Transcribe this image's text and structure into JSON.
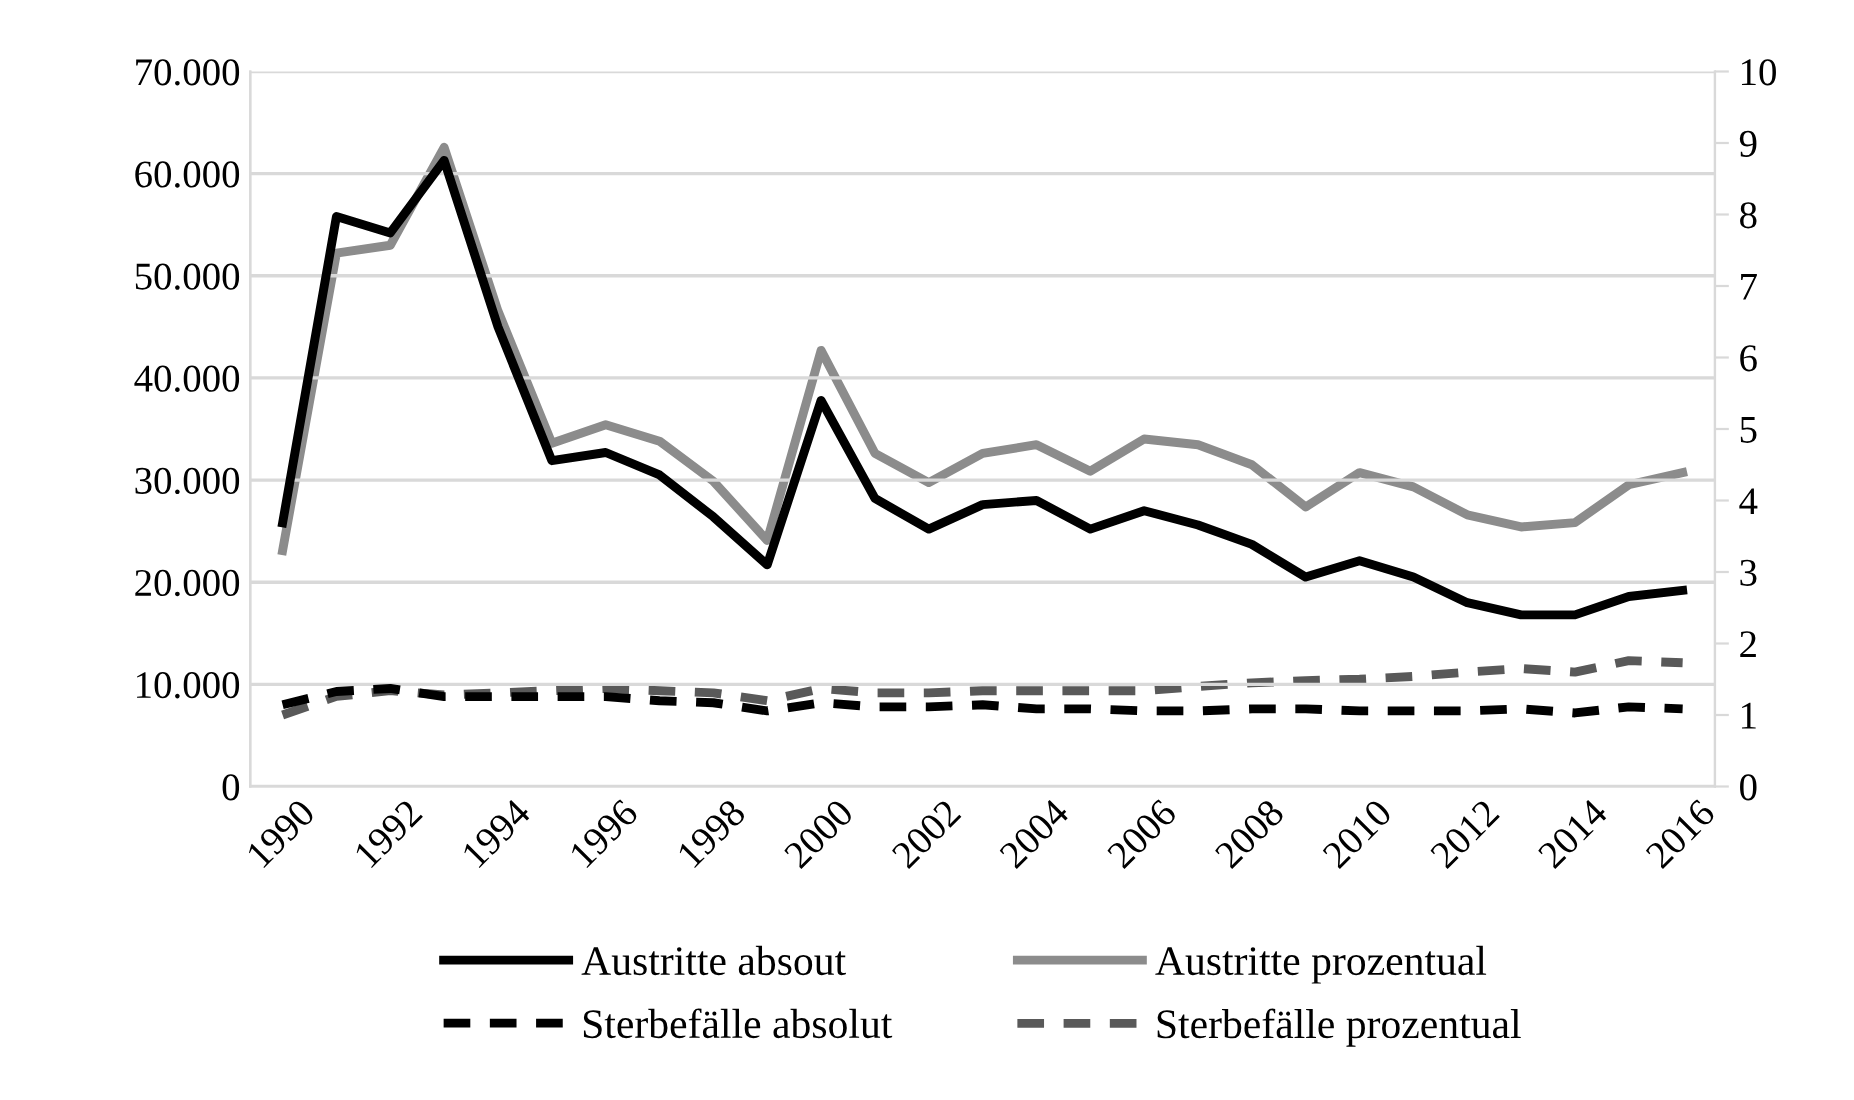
{
  "chart_data": {
    "type": "line",
    "x": [
      1990,
      1991,
      1992,
      1993,
      1994,
      1995,
      1996,
      1997,
      1998,
      1999,
      2000,
      2001,
      2002,
      2003,
      2004,
      2005,
      2006,
      2007,
      2008,
      2009,
      2010,
      2011,
      2012,
      2013,
      2014,
      2015,
      2016
    ],
    "series": [
      {
        "name": "Austritte absout",
        "color": "#000000",
        "line_style": "solid",
        "values": [
          25800,
          55800,
          54200,
          61300,
          45000,
          31900,
          32700,
          30500,
          26400,
          21700,
          37800,
          28200,
          25200,
          27600,
          28000,
          25200,
          27000,
          25600,
          23700,
          20500,
          22100,
          20500,
          18000,
          16800,
          16800,
          18600,
          19200
        ]
      },
      {
        "name": "Sterbefälle absolut",
        "color": "#000000",
        "line_style": "dashed",
        "values": [
          8000,
          9300,
          9600,
          8800,
          8800,
          8800,
          8800,
          8400,
          8200,
          7400,
          8200,
          7800,
          7800,
          8000,
          7600,
          7600,
          7400,
          7400,
          7600,
          7600,
          7400,
          7400,
          7400,
          7600,
          7200,
          7800,
          7600
        ]
      },
      {
        "name": "Austritte prozentual",
        "color": "#8c8c8c",
        "line_style": "solid",
        "axis": "y2",
        "values": [
          3.3,
          7.46,
          7.57,
          8.94,
          6.65,
          4.8,
          5.06,
          4.83,
          4.27,
          3.44,
          6.1,
          4.66,
          4.25,
          4.66,
          4.78,
          4.41,
          4.86,
          4.78,
          4.5,
          3.91,
          4.39,
          4.19,
          3.8,
          3.63,
          3.69,
          4.22,
          4.39
        ]
      },
      {
        "name": "Sterbefälle prozentual",
        "color": "#595959",
        "line_style": "dashed",
        "axis": "y2",
        "values": [
          1.0,
          1.26,
          1.34,
          1.28,
          1.31,
          1.34,
          1.37,
          1.34,
          1.31,
          1.2,
          1.37,
          1.31,
          1.31,
          1.34,
          1.34,
          1.34,
          1.34,
          1.4,
          1.45,
          1.48,
          1.5,
          1.54,
          1.6,
          1.65,
          1.6,
          1.76,
          1.73
        ]
      }
    ],
    "xlim": [
      1989.4,
      2016.6
    ],
    "xticks": [
      1990,
      1992,
      1994,
      1996,
      1998,
      2000,
      2002,
      2004,
      2006,
      2008,
      2010,
      2012,
      2014,
      2016
    ],
    "ylim": [
      0,
      70000
    ],
    "yticks": [
      {
        "value": 0,
        "label": "0"
      },
      {
        "value": 10000,
        "label": "10.000"
      },
      {
        "value": 20000,
        "label": "20.000"
      },
      {
        "value": 30000,
        "label": "30.000"
      },
      {
        "value": 40000,
        "label": "40.000"
      },
      {
        "value": 50000,
        "label": "50.000"
      },
      {
        "value": 60000,
        "label": "60.000"
      },
      {
        "value": 70000,
        "label": "70.000"
      }
    ],
    "y2lim": [
      0,
      10
    ],
    "y2ticks": [
      0,
      1,
      2,
      3,
      4,
      5,
      6,
      7,
      8,
      9,
      10
    ],
    "grid": "y",
    "legend": "bottom",
    "marker": "none"
  }
}
